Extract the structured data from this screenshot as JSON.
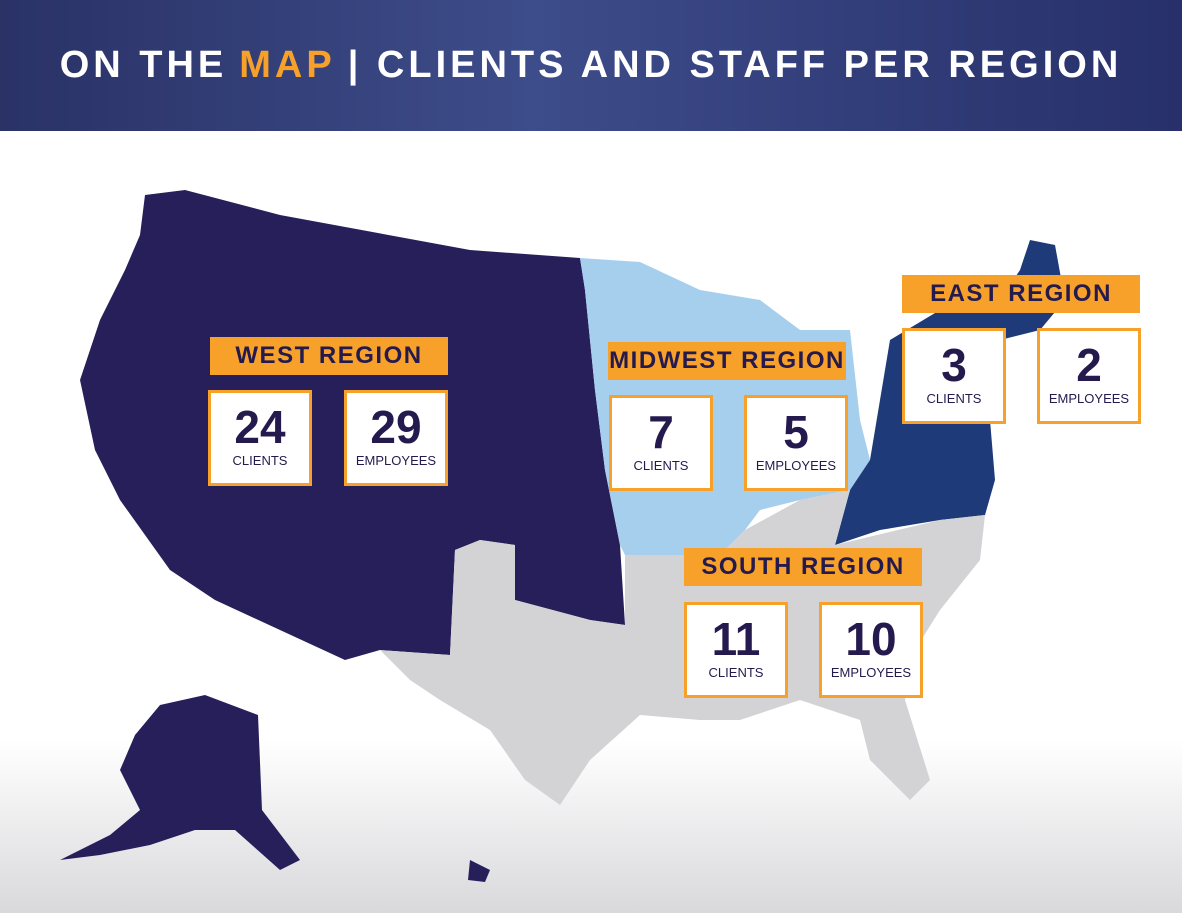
{
  "header": {
    "title": [
      "ON THE",
      "MAP",
      "| CLIENTS AND STAFF PER REGION"
    ]
  },
  "regions": [
    {
      "name": "WEST REGION",
      "clients": 24,
      "clients_label": "CLIENTS",
      "employees": 29,
      "employees_label": "EMPLOYEES"
    },
    {
      "name": "MIDWEST REGION",
      "clients": 7,
      "clients_label": "CLIENTS",
      "employees": 5,
      "employees_label": "EMPLOYEES"
    },
    {
      "name": "EAST REGION",
      "clients": 3,
      "clients_label": "CLIENTS",
      "employees": 2,
      "employees_label": "EMPLOYEES"
    },
    {
      "name": "SOUTH REGION",
      "clients": 11,
      "clients_label": "CLIENTS",
      "employees": 10,
      "employees_label": "EMPLOYEES"
    }
  ]
}
